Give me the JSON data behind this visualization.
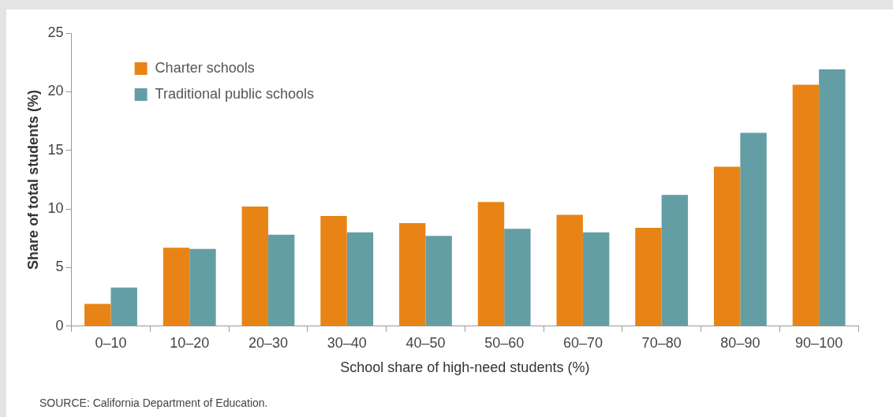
{
  "chart_data": {
    "type": "bar",
    "categories": [
      "0–10",
      "10–20",
      "20–30",
      "30–40",
      "40–50",
      "50–60",
      "60–70",
      "70–80",
      "80–90",
      "90–100"
    ],
    "series": [
      {
        "name": "Charter schools",
        "color": "#e88416",
        "values": [
          1.9,
          6.7,
          10.2,
          9.4,
          8.8,
          10.6,
          9.5,
          8.4,
          13.6,
          20.6
        ]
      },
      {
        "name": "Traditional public schools",
        "color": "#649ea5",
        "values": [
          3.3,
          6.6,
          7.8,
          8.0,
          7.7,
          8.3,
          8.0,
          11.2,
          16.5,
          21.9
        ]
      }
    ],
    "xlabel": "School share of high-need students (%)",
    "ylabel": "Share of total students (%)",
    "ylim": [
      0,
      25
    ],
    "yticks": [
      0,
      5,
      10,
      15,
      20,
      25
    ],
    "grid": false,
    "legend": "top left",
    "annotations": [
      "SOURCE: California Department of Education."
    ]
  }
}
